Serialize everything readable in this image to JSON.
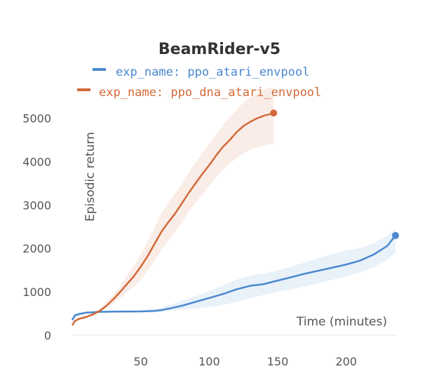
{
  "chart_data": {
    "type": "line",
    "title": "BeamRider-v5",
    "xlabel": "Time (minutes)",
    "ylabel": "Episodic return",
    "xlim": [
      0,
      237
    ],
    "ylim": [
      0,
      5300
    ],
    "xticks": [
      50,
      100,
      150,
      200
    ],
    "yticks": [
      0,
      1000,
      2000,
      3000,
      4000,
      5000
    ],
    "grid": false,
    "legend_position": "top",
    "series": [
      {
        "name": "exp_name: ppo_atari_envpool",
        "color": "#4a88d0",
        "x": [
          0,
          2,
          5,
          10,
          20,
          30,
          40,
          50,
          60,
          65,
          70,
          80,
          90,
          100,
          110,
          120,
          130,
          140,
          150,
          160,
          170,
          180,
          190,
          200,
          210,
          220,
          230,
          236
        ],
        "y": [
          350,
          460,
          490,
          520,
          540,
          545,
          548,
          550,
          560,
          580,
          610,
          680,
          770,
          860,
          950,
          1060,
          1140,
          1180,
          1260,
          1340,
          1420,
          1490,
          1560,
          1630,
          1720,
          1860,
          2060,
          2300
        ],
        "y_lower": [
          300,
          410,
          450,
          490,
          515,
          520,
          525,
          525,
          530,
          540,
          560,
          590,
          620,
          650,
          700,
          770,
          860,
          930,
          1000,
          1060,
          1130,
          1200,
          1280,
          1360,
          1450,
          1570,
          1740,
          1900
        ],
        "y_upper": [
          410,
          500,
          530,
          550,
          565,
          570,
          575,
          575,
          600,
          630,
          690,
          790,
          900,
          1020,
          1150,
          1280,
          1370,
          1420,
          1490,
          1580,
          1680,
          1780,
          1880,
          1950,
          2010,
          2120,
          2300,
          2460
        ]
      },
      {
        "name": "exp_name: ppo_dna_atari_envpool",
        "color": "#d2693a",
        "x": [
          0,
          2,
          5,
          10,
          15,
          20,
          25,
          30,
          35,
          40,
          45,
          50,
          55,
          60,
          65,
          70,
          75,
          80,
          85,
          90,
          95,
          100,
          105,
          110,
          115,
          120,
          125,
          130,
          135,
          140,
          145,
          147
        ],
        "y": [
          230,
          330,
          380,
          420,
          480,
          560,
          680,
          830,
          1000,
          1180,
          1360,
          1580,
          1820,
          2100,
          2380,
          2600,
          2800,
          3040,
          3280,
          3500,
          3720,
          3920,
          4140,
          4340,
          4500,
          4680,
          4820,
          4920,
          5000,
          5060,
          5100,
          5120
        ],
        "y_lower": [
          200,
          300,
          350,
          390,
          440,
          510,
          610,
          730,
          860,
          990,
          1120,
          1290,
          1480,
          1710,
          1960,
          2180,
          2380,
          2600,
          2840,
          3040,
          3250,
          3440,
          3630,
          3820,
          3960,
          4080,
          4200,
          4280,
          4330,
          4370,
          4400,
          4400
        ],
        "y_upper": [
          260,
          360,
          410,
          450,
          520,
          610,
          760,
          940,
          1140,
          1370,
          1600,
          1860,
          2150,
          2470,
          2800,
          3060,
          3270,
          3480,
          3740,
          3980,
          4200,
          4400,
          4620,
          4840,
          5020,
          5200,
          5360,
          5480,
          5580,
          5660,
          5700,
          5700
        ]
      }
    ]
  }
}
